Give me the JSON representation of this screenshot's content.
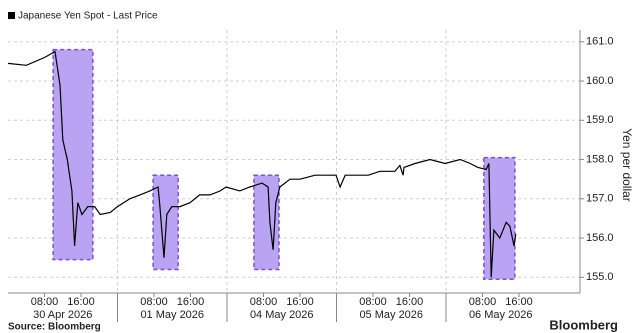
{
  "chart_data": {
    "type": "line",
    "y_label": "Yen per dollar",
    "source": "Source: Bloomberg",
    "logo": "Bloomberg",
    "x_groups": [
      {
        "label": "30 Apr 2026",
        "ticks": [
          "08:00",
          "16:00"
        ]
      },
      {
        "label": "01 May 2026",
        "ticks": [
          "08:00",
          "16:00"
        ]
      },
      {
        "label": "04 May 2026",
        "ticks": [
          "08:00",
          "16:00"
        ]
      },
      {
        "label": "05 May 2026",
        "ticks": [
          "08:00",
          "16:00"
        ]
      },
      {
        "label": "06 May 2026",
        "ticks": [
          "08:00",
          "16:00"
        ]
      }
    ],
    "ylim": [
      154.6,
      161.3
    ],
    "yticks": [
      {
        "value": 155,
        "label": "155.0"
      },
      {
        "value": 156,
        "label": "156.0"
      },
      {
        "value": 157,
        "label": "157.0"
      },
      {
        "value": 158,
        "label": "158.0"
      },
      {
        "value": 159,
        "label": "159.0"
      },
      {
        "value": 160,
        "label": "160.0"
      },
      {
        "value": 161,
        "label": "161.0"
      }
    ],
    "grid": true,
    "series": [
      {
        "name": "Japanese Yen Spot - Last Price",
        "color": "#000000",
        "x": [
          "30 Apr 2026 00:00",
          "30 Apr 2026 04:00",
          "30 Apr 2026 08:00",
          "30 Apr 2026 10:18",
          "30 Apr 2026 11:24",
          "30 Apr 2026 12:00",
          "30 Apr 2026 13:00",
          "30 Apr 2026 14:00",
          "30 Apr 2026 14:36",
          "30 Apr 2026 15:18",
          "30 Apr 2026 16:12",
          "30 Apr 2026 17:30",
          "30 Apr 2026 19:00",
          "30 Apr 2026 20:12",
          "30 Apr 2026 22:24",
          "01 May 2026 00:00",
          "01 May 2026 02:42",
          "01 May 2026 04:54",
          "01 May 2026 07:06",
          "01 May 2026 08:54",
          "01 May 2026 09:18",
          "01 May 2026 10:12",
          "01 May 2026 10:48",
          "01 May 2026 11:54",
          "01 May 2026 13:42",
          "01 May 2026 15:54",
          "01 May 2026 18:00",
          "01 May 2026 20:18",
          "01 May 2026 22:30",
          "01 May 2026 23:48",
          "04 May 2026 02:48",
          "04 May 2026 05:00",
          "04 May 2026 07:42",
          "04 May 2026 09:00",
          "04 May 2026 09:24",
          "04 May 2026 10:06",
          "04 May 2026 10:42",
          "04 May 2026 11:36",
          "04 May 2026 13:48",
          "04 May 2026 16:00",
          "04 May 2026 19:18",
          "04 May 2026 22:36",
          "04 May 2026 23:54",
          "05 May 2026 00:48",
          "05 May 2026 01:54",
          "05 May 2026 07:00",
          "05 May 2026 09:30",
          "05 May 2026 12:48",
          "05 May 2026 13:54",
          "05 May 2026 14:36",
          "05 May 2026 14:48",
          "05 May 2026 17:12",
          "05 May 2026 20:30",
          "05 May 2026 23:48",
          "06 May 2026 03:06",
          "06 May 2026 05:18",
          "06 May 2026 07:00",
          "06 May 2026 08:48",
          "06 May 2026 09:24",
          "06 May 2026 09:54",
          "06 May 2026 10:30",
          "06 May 2026 11:48",
          "06 May 2026 13:12",
          "06 May 2026 14:00",
          "06 May 2026 14:54",
          "06 May 2026 15:18"
        ],
        "values": [
          160.45,
          160.4,
          160.6,
          160.75,
          159.9,
          158.5,
          158.0,
          157.2,
          155.8,
          156.9,
          156.6,
          156.8,
          156.8,
          156.6,
          156.65,
          156.8,
          157.0,
          157.1,
          157.2,
          157.3,
          156.8,
          155.5,
          156.6,
          156.8,
          156.8,
          156.9,
          157.1,
          157.1,
          157.2,
          157.3,
          157.2,
          157.3,
          157.4,
          157.3,
          156.4,
          155.7,
          156.9,
          157.3,
          157.5,
          157.5,
          157.6,
          157.6,
          157.6,
          157.3,
          157.6,
          157.6,
          157.7,
          157.7,
          157.85,
          157.6,
          157.8,
          157.9,
          158.0,
          157.9,
          158.0,
          157.9,
          157.8,
          157.75,
          157.9,
          155.0,
          156.2,
          156.0,
          156.4,
          156.3,
          155.8,
          156.1
        ]
      }
    ],
    "highlights": [
      {
        "start": "30 Apr 2026 09:54",
        "end": "30 Apr 2026 18:36",
        "top": 160.8,
        "bottom": 155.45
      },
      {
        "start": "01 May 2026 07:48",
        "end": "01 May 2026 13:18",
        "top": 157.6,
        "bottom": 155.2
      },
      {
        "start": "04 May 2026 05:54",
        "end": "04 May 2026 11:24",
        "top": 157.6,
        "bottom": 155.2
      },
      {
        "start": "06 May 2026 08:18",
        "end": "06 May 2026 15:06",
        "top": 158.05,
        "bottom": 154.95
      }
    ]
  }
}
